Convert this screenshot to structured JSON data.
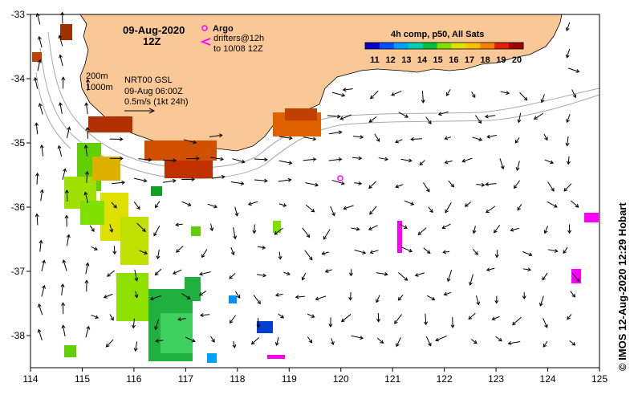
{
  "header": {
    "date": "09-Aug-2020",
    "time": "12Z",
    "argo_label": "Argo",
    "drifters_line1": "drifters@12h",
    "drifters_line2": "to 10/08 12Z",
    "legend_title": "4h comp, p50, All Sats",
    "legend_ticks": [
      "11",
      "12",
      "13",
      "14",
      "15",
      "16",
      "17",
      "18",
      "19",
      "20"
    ],
    "legend_colors": [
      "#0000c8",
      "#0050ff",
      "#00a0ff",
      "#00d0b0",
      "#00c040",
      "#80e000",
      "#e0e000",
      "#ffc000",
      "#ff8000",
      "#e02000",
      "#a00000"
    ]
  },
  "info": {
    "iso1": "200m",
    "iso2": "1000m",
    "product": "NRT00 GSL",
    "datetime": "09-Aug 06:00Z",
    "scale": "0.5m/s (1kt 24h)"
  },
  "axes": {
    "x_ticks": [
      "114",
      "115",
      "116",
      "117",
      "118",
      "119",
      "120",
      "121",
      "122",
      "123",
      "124",
      "125"
    ],
    "y_ticks": [
      "-33",
      "-34",
      "-35",
      "-36",
      "-37",
      "-38"
    ],
    "x_range": [
      114,
      125
    ],
    "y_range": [
      -38.5,
      -33
    ]
  },
  "credit": "© IMOS 12-Aug-2020 12:29 Hobart",
  "colors": {
    "land": "#fac896",
    "argo": "#ff00ff",
    "drifter": "#ff00ff",
    "isobath": "#a8a8a8"
  }
}
